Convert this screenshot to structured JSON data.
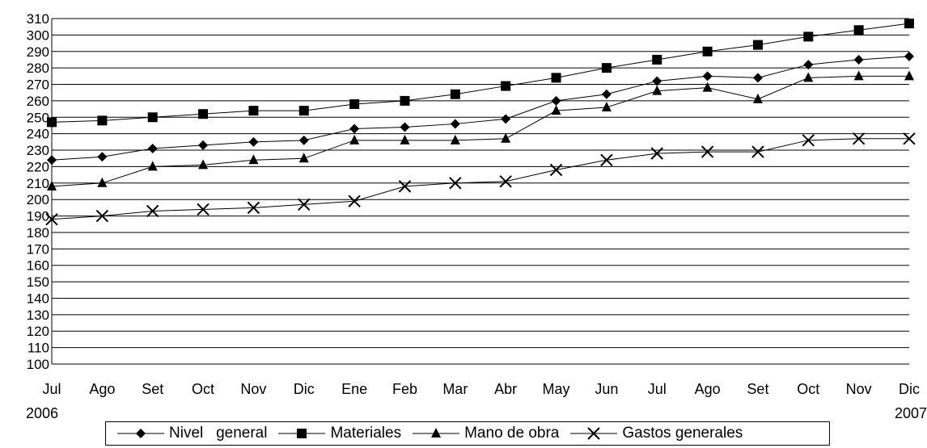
{
  "chart_data": {
    "type": "line",
    "categories": [
      "Jul",
      "Ago",
      "Set",
      "Oct",
      "Nov",
      "Dic",
      "Ene",
      "Feb",
      "Mar",
      "Abr",
      "May",
      "Jun",
      "Jul",
      "Ago",
      "Set",
      "Oct",
      "Nov",
      "Dic"
    ],
    "year_start_label": "2006",
    "year_end_label": "2007",
    "ylim": [
      100,
      310
    ],
    "yticks": [
      100,
      110,
      120,
      130,
      140,
      150,
      160,
      170,
      180,
      190,
      200,
      210,
      220,
      230,
      240,
      250,
      260,
      270,
      280,
      290,
      300,
      310
    ],
    "grid": "horizontal",
    "legend_position": "bottom",
    "series": [
      {
        "name": "Nivel   general",
        "marker": "diamond",
        "values": [
          224,
          226,
          231,
          233,
          235,
          236,
          243,
          244,
          246,
          249,
          260,
          264,
          272,
          275,
          274,
          282,
          285,
          287
        ]
      },
      {
        "name": "Materiales",
        "marker": "square",
        "values": [
          247,
          248,
          250,
          252,
          254,
          254,
          258,
          260,
          264,
          269,
          274,
          280,
          285,
          290,
          294,
          299,
          303,
          307
        ]
      },
      {
        "name": "Mano de obra",
        "marker": "triangle",
        "values": [
          208,
          210,
          220,
          221,
          224,
          225,
          236,
          236,
          236,
          237,
          254,
          256,
          266,
          268,
          261,
          274,
          275,
          275
        ]
      },
      {
        "name": "Gastos generales",
        "marker": "x",
        "values": [
          188,
          190,
          193,
          194,
          195,
          197,
          199,
          208,
          210,
          211,
          218,
          224,
          228,
          229,
          229,
          236,
          237,
          237
        ]
      }
    ]
  }
}
